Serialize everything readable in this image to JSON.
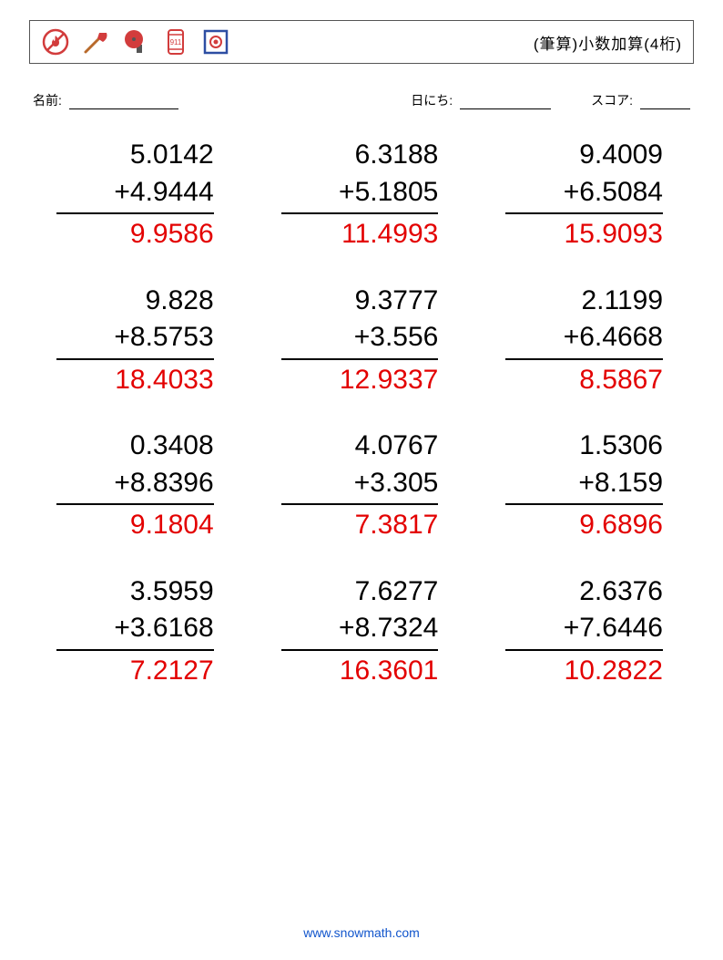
{
  "title": "(筆算)小数加算(4桁)",
  "meta": {
    "name_label": "名前:",
    "date_label": "日にち:",
    "score_label": "スコア:"
  },
  "icons": {
    "no_fire": {
      "ring": "#d23c3c",
      "inner": "#d23c3c"
    },
    "axe": {
      "handle": "#b86a2b",
      "head": "#d23c3c"
    },
    "bell": {
      "body": "#d23c3c",
      "mount": "#555555"
    },
    "phone": {
      "stroke": "#d23c3c",
      "text": "911"
    },
    "pull": {
      "frame": "#2d4ea3",
      "dot": "#d23c3c"
    }
  },
  "answer_color": "#e30000",
  "operator": "+",
  "problems": [
    {
      "a": "5.0142",
      "b": "4.9444",
      "ans": "9.9586"
    },
    {
      "a": "6.3188",
      "b": "5.1805",
      "ans": "11.4993"
    },
    {
      "a": "9.4009",
      "b": "6.5084",
      "ans": "15.9093"
    },
    {
      "a": "9.828",
      "b": "8.5753",
      "ans": "18.4033"
    },
    {
      "a": "9.3777",
      "b": "3.556",
      "ans": "12.9337"
    },
    {
      "a": "2.1199",
      "b": "6.4668",
      "ans": "8.5867"
    },
    {
      "a": "0.3408",
      "b": "8.8396",
      "ans": "9.1804"
    },
    {
      "a": "4.0767",
      "b": "3.305",
      "ans": "7.3817"
    },
    {
      "a": "1.5306",
      "b": "8.159",
      "ans": "9.6896"
    },
    {
      "a": "3.5959",
      "b": "3.6168",
      "ans": "7.2127"
    },
    {
      "a": "7.6277",
      "b": "8.7324",
      "ans": "16.3601"
    },
    {
      "a": "2.6376",
      "b": "7.6446",
      "ans": "10.2822"
    }
  ],
  "footer": {
    "url": "www.snowmath.com"
  }
}
